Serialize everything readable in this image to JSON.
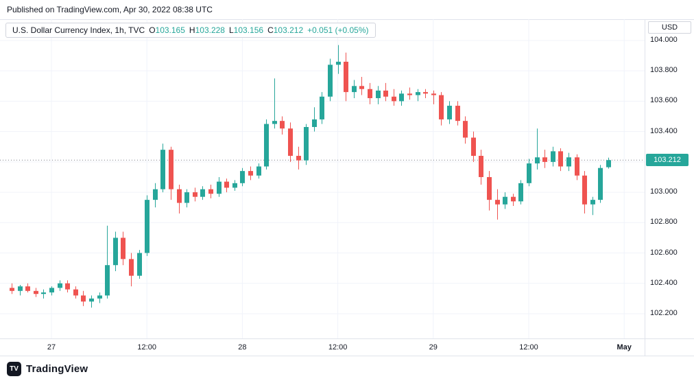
{
  "published": {
    "text": "Published on TradingView.com, Apr 30, 2022 08:38 UTC"
  },
  "legend": {
    "title": "U.S. Dollar Currency Index, 1h, TVC",
    "ohlc": [
      {
        "label": "O",
        "value": "103.165"
      },
      {
        "label": "H",
        "value": "103.228"
      },
      {
        "label": "L",
        "value": "103.156"
      },
      {
        "label": "C",
        "value": "103.212"
      }
    ],
    "change": "+0.051 (+0.05%)"
  },
  "price_axis": {
    "unit": "USD",
    "labels": [
      "104.000",
      "103.800",
      "103.600",
      "103.400",
      "103.200",
      "103.000",
      "102.800",
      "102.600",
      "102.400",
      "102.200"
    ],
    "last_price": "103.212"
  },
  "time_axis": {
    "ticks": [
      {
        "label": "27",
        "candle_index": 5
      },
      {
        "label": "12:00",
        "candle_index": 17
      },
      {
        "label": "28",
        "candle_index": 29
      },
      {
        "label": "12:00",
        "candle_index": 41
      },
      {
        "label": "29",
        "candle_index": 53
      },
      {
        "label": "12:00",
        "candle_index": 65
      },
      {
        "label": "May",
        "candle_index": 77,
        "bold": true
      }
    ]
  },
  "footer": {
    "brand": "TradingView",
    "logo_glyph": "TV"
  },
  "colors": {
    "up": "#26a69a",
    "down": "#ef5350",
    "grid": "#f0f3fa",
    "border": "#e0e3eb",
    "text": "#131722",
    "muted": "#787b86",
    "badge_bg": "#26a69a",
    "badge_text": "#ffffff"
  },
  "chart_data": {
    "type": "candlestick",
    "title": "U.S. Dollar Currency Index, 1h, TVC",
    "symbol": "U.S. Dollar Currency Index",
    "interval": "1h",
    "exchange": "TVC",
    "ohlc_current": {
      "open": 103.165,
      "high": 103.228,
      "low": 103.156,
      "close": 103.212,
      "change": "+0.051 (+0.05%)"
    },
    "last_price": 103.212,
    "ylim": [
      102.037,
      104.14
    ],
    "y_tick_interval": 0.2,
    "x_ticks": [
      "27",
      "12:00",
      "28",
      "12:00",
      "29",
      "12:00",
      "May"
    ],
    "grid": true,
    "legend_position": "top-left",
    "candles": [
      [
        "Apr 26 19:00",
        102.37,
        102.4,
        102.33,
        102.35
      ],
      [
        "Apr 26 20:00",
        102.35,
        102.39,
        102.32,
        102.38
      ],
      [
        "Apr 26 21:00",
        102.38,
        102.4,
        102.34,
        102.35
      ],
      [
        "Apr 26 22:00",
        102.35,
        102.37,
        102.31,
        102.33
      ],
      [
        "Apr 26 23:00",
        102.33,
        102.36,
        102.3,
        102.34
      ],
      [
        "Apr 27 00:00",
        102.34,
        102.38,
        102.32,
        102.37
      ],
      [
        "Apr 27 01:00",
        102.37,
        102.42,
        102.35,
        102.4
      ],
      [
        "Apr 27 02:00",
        102.4,
        102.42,
        102.34,
        102.36
      ],
      [
        "Apr 27 03:00",
        102.36,
        102.38,
        102.3,
        102.32
      ],
      [
        "Apr 27 04:00",
        102.32,
        102.35,
        102.25,
        102.28
      ],
      [
        "Apr 27 05:00",
        102.28,
        102.32,
        102.24,
        102.3
      ],
      [
        "Apr 27 06:00",
        102.3,
        102.34,
        102.27,
        102.32
      ],
      [
        "Apr 27 07:00",
        102.32,
        102.78,
        102.3,
        102.52
      ],
      [
        "Apr 27 08:00",
        102.52,
        102.74,
        102.48,
        102.7
      ],
      [
        "Apr 27 09:00",
        102.7,
        102.74,
        102.52,
        102.56
      ],
      [
        "Apr 27 10:00",
        102.56,
        102.6,
        102.38,
        102.45
      ],
      [
        "Apr 27 11:00",
        102.45,
        102.62,
        102.43,
        102.6
      ],
      [
        "Apr 27 12:00",
        102.6,
        102.98,
        102.58,
        102.95
      ],
      [
        "Apr 27 13:00",
        102.95,
        103.06,
        102.9,
        103.02
      ],
      [
        "Apr 27 14:00",
        103.02,
        103.32,
        103.0,
        103.28
      ],
      [
        "Apr 27 15:00",
        103.28,
        103.3,
        102.95,
        103.02
      ],
      [
        "Apr 27 16:00",
        103.02,
        103.05,
        102.86,
        102.93
      ],
      [
        "Apr 27 17:00",
        102.93,
        103.02,
        102.9,
        103.0
      ],
      [
        "Apr 27 18:00",
        103.0,
        103.03,
        102.94,
        102.97
      ],
      [
        "Apr 27 19:00",
        102.97,
        103.04,
        102.95,
        103.02
      ],
      [
        "Apr 27 20:00",
        103.02,
        103.05,
        102.96,
        102.99
      ],
      [
        "Apr 27 21:00",
        102.99,
        103.1,
        102.97,
        103.07
      ],
      [
        "Apr 27 22:00",
        103.07,
        103.09,
        103.0,
        103.03
      ],
      [
        "Apr 27 23:00",
        103.03,
        103.08,
        103.01,
        103.06
      ],
      [
        "Apr 28 00:00",
        103.06,
        103.16,
        103.04,
        103.14
      ],
      [
        "Apr 28 01:00",
        103.14,
        103.17,
        103.08,
        103.11
      ],
      [
        "Apr 28 02:00",
        103.11,
        103.19,
        103.09,
        103.17
      ],
      [
        "Apr 28 03:00",
        103.17,
        103.48,
        103.15,
        103.45
      ],
      [
        "Apr 28 04:00",
        103.45,
        103.75,
        103.42,
        103.47
      ],
      [
        "Apr 28 05:00",
        103.47,
        103.5,
        103.38,
        103.42
      ],
      [
        "Apr 28 06:00",
        103.42,
        103.46,
        103.2,
        103.24
      ],
      [
        "Apr 28 07:00",
        103.24,
        103.3,
        103.15,
        103.21
      ],
      [
        "Apr 28 08:00",
        103.21,
        103.45,
        103.18,
        103.43
      ],
      [
        "Apr 28 09:00",
        103.43,
        103.56,
        103.4,
        103.48
      ],
      [
        "Apr 28 10:00",
        103.48,
        103.66,
        103.45,
        103.63
      ],
      [
        "Apr 28 11:00",
        103.63,
        103.88,
        103.6,
        103.84
      ],
      [
        "Apr 28 12:00",
        103.84,
        103.97,
        103.78,
        103.86
      ],
      [
        "Apr 28 13:00",
        103.86,
        103.92,
        103.6,
        103.66
      ],
      [
        "Apr 28 14:00",
        103.66,
        103.74,
        103.62,
        103.7
      ],
      [
        "Apr 28 15:00",
        103.7,
        103.76,
        103.64,
        103.68
      ],
      [
        "Apr 28 16:00",
        103.68,
        103.72,
        103.58,
        103.62
      ],
      [
        "Apr 28 17:00",
        103.62,
        103.7,
        103.58,
        103.67
      ],
      [
        "Apr 28 18:00",
        103.67,
        103.72,
        103.6,
        103.63
      ],
      [
        "Apr 28 19:00",
        103.63,
        103.68,
        103.57,
        103.6
      ],
      [
        "Apr 28 20:00",
        103.6,
        103.67,
        103.57,
        103.65
      ],
      [
        "Apr 28 21:00",
        103.65,
        103.69,
        103.61,
        103.64
      ],
      [
        "Apr 28 22:00",
        103.64,
        103.68,
        103.6,
        103.66
      ],
      [
        "Apr 28 23:00",
        103.66,
        103.68,
        103.62,
        103.65
      ],
      [
        "Apr 29 00:00",
        103.65,
        103.67,
        103.58,
        103.64
      ],
      [
        "Apr 29 01:00",
        103.64,
        103.66,
        103.44,
        103.48
      ],
      [
        "Apr 29 02:00",
        103.48,
        103.6,
        103.45,
        103.57
      ],
      [
        "Apr 29 03:00",
        103.57,
        103.6,
        103.44,
        103.47
      ],
      [
        "Apr 29 04:00",
        103.47,
        103.5,
        103.32,
        103.36
      ],
      [
        "Apr 29 05:00",
        103.36,
        103.4,
        103.2,
        103.24
      ],
      [
        "Apr 29 06:00",
        103.24,
        103.28,
        103.05,
        103.1
      ],
      [
        "Apr 29 07:00",
        103.1,
        103.14,
        102.88,
        102.95
      ],
      [
        "Apr 29 08:00",
        102.95,
        103.02,
        102.82,
        102.92
      ],
      [
        "Apr 29 09:00",
        102.92,
        103.0,
        102.89,
        102.97
      ],
      [
        "Apr 29 10:00",
        102.97,
        102.99,
        102.91,
        102.94
      ],
      [
        "Apr 29 11:00",
        102.94,
        103.08,
        102.92,
        103.06
      ],
      [
        "Apr 29 12:00",
        103.06,
        103.22,
        103.04,
        103.19
      ],
      [
        "Apr 29 13:00",
        103.19,
        103.42,
        103.15,
        103.23
      ],
      [
        "Apr 29 14:00",
        103.23,
        103.28,
        103.16,
        103.2
      ],
      [
        "Apr 29 15:00",
        103.2,
        103.3,
        103.17,
        103.27
      ],
      [
        "Apr 29 16:00",
        103.27,
        103.29,
        103.14,
        103.17
      ],
      [
        "Apr 29 17:00",
        103.17,
        103.26,
        103.14,
        103.23
      ],
      [
        "Apr 29 18:00",
        103.23,
        103.25,
        103.08,
        103.11
      ],
      [
        "Apr 29 19:00",
        103.11,
        103.14,
        102.86,
        102.92
      ],
      [
        "Apr 29 20:00",
        102.92,
        102.97,
        102.85,
        102.95
      ],
      [
        "Apr 29 21:00",
        102.95,
        103.18,
        102.93,
        103.16
      ],
      [
        "Apr 29 22:00",
        103.165,
        103.228,
        103.156,
        103.212
      ]
    ]
  }
}
